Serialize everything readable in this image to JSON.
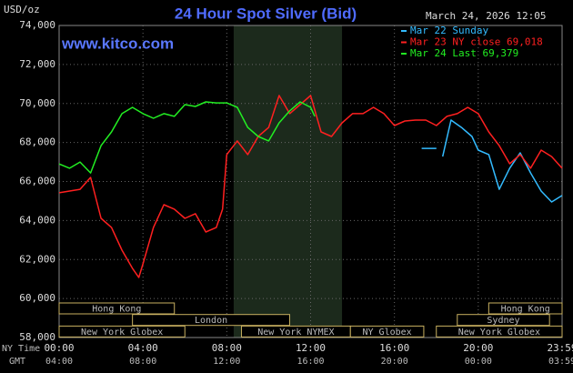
{
  "chart_data": {
    "type": "line",
    "title": "24 Hour Spot Silver (Bid)",
    "timestamp": "March 24, 2026 12:05",
    "website": "www.kitco.com",
    "y_label": "USD/oz",
    "x_label": "NY Time",
    "x2_label": "GMT",
    "xlim": [
      0,
      24
    ],
    "ylim": [
      58000,
      74000
    ],
    "grid": true,
    "xticks": [
      {
        "value": 0,
        "label": "00:00"
      },
      {
        "value": 4,
        "label": "04:00"
      },
      {
        "value": 8,
        "label": "08:00"
      },
      {
        "value": 12,
        "label": "12:00"
      },
      {
        "value": 16,
        "label": "16:00"
      },
      {
        "value": 20,
        "label": "20:00"
      },
      {
        "value": 24,
        "label": "23:59"
      }
    ],
    "x2ticks": [
      "04:00",
      "08:00",
      "12:00",
      "16:00",
      "20:00",
      "00:00",
      "03:59"
    ],
    "yticks": [
      {
        "value": 74000,
        "label": "74,000"
      },
      {
        "value": 72000,
        "label": "72,000"
      },
      {
        "value": 70000,
        "label": "70,000"
      },
      {
        "value": 68000,
        "label": "68,000"
      },
      {
        "value": 66000,
        "label": "66,000"
      },
      {
        "value": 64000,
        "label": "64,000"
      },
      {
        "value": 62000,
        "label": "62,000"
      },
      {
        "value": 60000,
        "label": "60,000"
      },
      {
        "value": 58000,
        "label": "58,000"
      }
    ],
    "shaded_hours": [
      8.33,
      13.5
    ],
    "sessions": [
      [
        {
          "label": "Hong Kong",
          "start": 0,
          "end": 5.5
        },
        {
          "label": "Hong Kong",
          "start": 20.5,
          "end": 24
        }
      ],
      [
        {
          "label": "London",
          "start": 3.5,
          "end": 11
        },
        {
          "label": "Sydney",
          "start": 19,
          "end": 23.4
        }
      ],
      [
        {
          "label": "New York Globex",
          "start": 0,
          "end": 6
        },
        {
          "label": "New York NYMEX",
          "start": 8.7,
          "end": 13.9
        },
        {
          "label": "NY Globex",
          "start": 13.9,
          "end": 17.4
        },
        {
          "label": "New York Globex",
          "start": 18,
          "end": 24
        }
      ]
    ],
    "series": [
      {
        "name": "Mar 22 Sunday",
        "color": "#33bbff",
        "x": [
          17.3,
          18.0,
          null,
          18.3,
          18.7,
          19.2,
          19.7,
          20,
          20.5,
          21,
          21.5,
          22,
          22.5,
          23,
          23.5,
          24
        ],
        "values": [
          67700,
          67700,
          null,
          67280,
          69150,
          68770,
          68310,
          67610,
          67380,
          65600,
          66680,
          67470,
          66440,
          65510,
          64950,
          65280
        ]
      },
      {
        "name": "Mar 23 NY close 69,018",
        "color": "#ff2020",
        "x": [
          0,
          1,
          1.5,
          2,
          2.5,
          3,
          3.5,
          3.8,
          4,
          4.5,
          5,
          5.5,
          6,
          6.5,
          7,
          7.5,
          7.8,
          8,
          8.5,
          9,
          9.5,
          10,
          10.5,
          11,
          11.5,
          12,
          12.5,
          13,
          13.5,
          14,
          14.5,
          15,
          15.5,
          16,
          16.5,
          17,
          17.5,
          18,
          18.5,
          19,
          19.5,
          20,
          20.5,
          21,
          21.5,
          22,
          22.5,
          23,
          23.5,
          24
        ],
        "values": [
          65420,
          65600,
          66210,
          64110,
          63640,
          62480,
          61550,
          61080,
          61780,
          63640,
          64810,
          64580,
          64110,
          64350,
          63410,
          63640,
          64580,
          67380,
          68080,
          67380,
          68310,
          68770,
          70410,
          69480,
          69940,
          70410,
          68540,
          68310,
          69010,
          69480,
          69480,
          69800,
          69480,
          68870,
          69100,
          69150,
          69150,
          68870,
          69340,
          69480,
          69800,
          69480,
          68540,
          67840,
          66910,
          67380,
          66680,
          67610,
          67280,
          66680
        ]
      },
      {
        "name": "Mar 24 Last 69,379",
        "color": "#22ee22",
        "x": [
          0,
          0.5,
          1,
          1.5,
          2,
          2.5,
          3,
          3.5,
          4,
          4.5,
          5,
          5.5,
          6,
          6.5,
          7,
          7.5,
          8,
          8.5,
          9,
          9.5,
          10,
          10.5,
          11,
          11.5,
          12,
          12.2
        ],
        "values": [
          66900,
          66680,
          67000,
          66440,
          67840,
          68540,
          69480,
          69800,
          69480,
          69240,
          69480,
          69340,
          69940,
          69850,
          70080,
          70030,
          70030,
          69800,
          68770,
          68310,
          68080,
          69010,
          69620,
          70080,
          69800,
          69340
        ]
      }
    ]
  }
}
